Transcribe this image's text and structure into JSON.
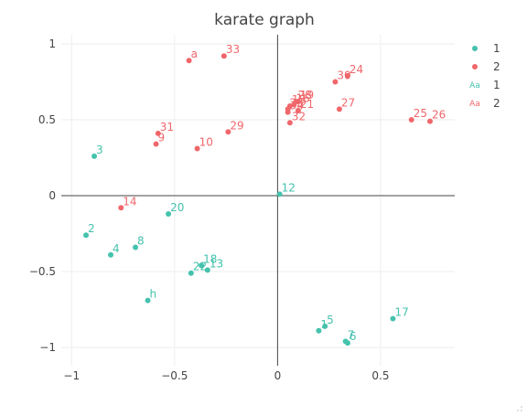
{
  "chart_data": {
    "type": "scatter",
    "title": "karate graph",
    "xlabel": "",
    "ylabel": "",
    "xlim": [
      -1.05,
      0.86
    ],
    "ylim": [
      -1.12,
      1.06
    ],
    "x_ticks": [
      -1,
      -0.5,
      0,
      0.5
    ],
    "x_tick_labels": [
      "−1",
      "−0.5",
      "0",
      "0.5"
    ],
    "y_ticks": [
      -1,
      -0.5,
      0,
      0.5,
      1
    ],
    "y_tick_labels": [
      "−1",
      "−0.5",
      "0",
      "0.5",
      "1"
    ],
    "grid": true,
    "legend_position": "right",
    "legend": [
      {
        "label": "1",
        "kind": "marker",
        "series": 0
      },
      {
        "label": "2",
        "kind": "marker",
        "series": 1
      },
      {
        "label": "1",
        "kind": "text",
        "glyph": "Aa",
        "series": 0
      },
      {
        "label": "2",
        "kind": "text",
        "glyph": "Aa",
        "series": 1
      }
    ],
    "series": [
      {
        "name": "1",
        "color": "#45c2ad",
        "points": [
          {
            "label": "3",
            "x": -0.89,
            "y": 0.26
          },
          {
            "label": "12",
            "x": 0.01,
            "y": 0.01
          },
          {
            "label": "20",
            "x": -0.53,
            "y": -0.12
          },
          {
            "label": "2",
            "x": -0.93,
            "y": -0.26
          },
          {
            "label": "8",
            "x": -0.69,
            "y": -0.34
          },
          {
            "label": "4",
            "x": -0.81,
            "y": -0.39
          },
          {
            "label": "18",
            "x": -0.37,
            "y": -0.46
          },
          {
            "label": "13",
            "x": -0.34,
            "y": -0.49
          },
          {
            "label": "22",
            "x": -0.42,
            "y": -0.51
          },
          {
            "label": "h",
            "x": -0.63,
            "y": -0.69
          },
          {
            "label": "17",
            "x": 0.56,
            "y": -0.81
          },
          {
            "label": "5",
            "x": 0.23,
            "y": -0.86
          },
          {
            "label": "1",
            "x": 0.2,
            "y": -0.89
          },
          {
            "label": "7",
            "x": 0.33,
            "y": -0.96
          },
          {
            "label": "6",
            "x": 0.34,
            "y": -0.97
          }
        ]
      },
      {
        "name": "2",
        "color": "#f0676b",
        "points": [
          {
            "label": "a",
            "x": -0.43,
            "y": 0.89
          },
          {
            "label": "33",
            "x": -0.26,
            "y": 0.92
          },
          {
            "label": "24",
            "x": 0.34,
            "y": 0.79
          },
          {
            "label": "30",
            "x": 0.28,
            "y": 0.75
          },
          {
            "label": "28",
            "x": 0.09,
            "y": 0.62
          },
          {
            "label": "19",
            "x": 0.1,
            "y": 0.62
          },
          {
            "label": "15",
            "x": 0.06,
            "y": 0.59
          },
          {
            "label": "16",
            "x": 0.08,
            "y": 0.6
          },
          {
            "label": "23",
            "x": 0.05,
            "y": 0.57
          },
          {
            "label": "21",
            "x": 0.1,
            "y": 0.56
          },
          {
            "label": "27",
            "x": 0.3,
            "y": 0.57
          },
          {
            "label": "34",
            "x": 0.05,
            "y": 0.55
          },
          {
            "label": "32",
            "x": 0.06,
            "y": 0.48
          },
          {
            "label": "25",
            "x": 0.65,
            "y": 0.5
          },
          {
            "label": "26",
            "x": 0.74,
            "y": 0.49
          },
          {
            "label": "29",
            "x": -0.24,
            "y": 0.42
          },
          {
            "label": "31",
            "x": -0.58,
            "y": 0.41
          },
          {
            "label": "9",
            "x": -0.59,
            "y": 0.34
          },
          {
            "label": "10",
            "x": -0.39,
            "y": 0.31
          },
          {
            "label": "14",
            "x": -0.76,
            "y": -0.08
          }
        ]
      }
    ]
  }
}
